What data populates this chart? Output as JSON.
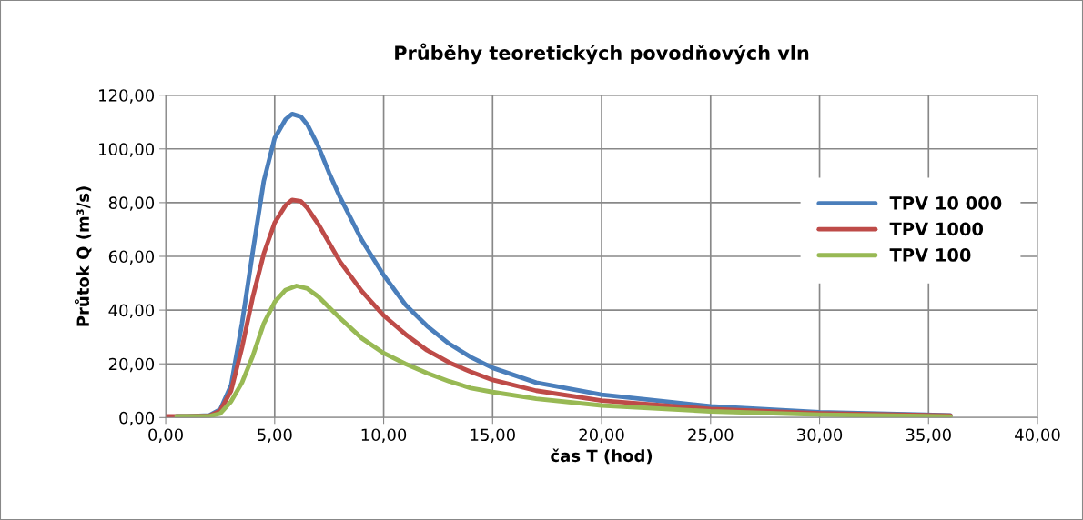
{
  "chart_data": {
    "type": "line",
    "title": "Průběhy teoretických povodňových vln",
    "xlabel": "čas T (hod)",
    "ylabel": "Průtok Q (m³/s)",
    "xlim": [
      0,
      40
    ],
    "ylim": [
      0,
      120
    ],
    "xticks": [
      {
        "value": 0,
        "label": "0,00"
      },
      {
        "value": 5,
        "label": "5,00"
      },
      {
        "value": 10,
        "label": "10,00"
      },
      {
        "value": 15,
        "label": "15,00"
      },
      {
        "value": 20,
        "label": "20,00"
      },
      {
        "value": 25,
        "label": "25,00"
      },
      {
        "value": 30,
        "label": "30,00"
      },
      {
        "value": 35,
        "label": "35,00"
      },
      {
        "value": 40,
        "label": "40,00"
      }
    ],
    "yticks": [
      {
        "value": 0,
        "label": "0,00"
      },
      {
        "value": 20,
        "label": "20,00"
      },
      {
        "value": 40,
        "label": "40,00"
      },
      {
        "value": 60,
        "label": "60,00"
      },
      {
        "value": 80,
        "label": "80,00"
      },
      {
        "value": 100,
        "label": "100,00"
      },
      {
        "value": 120,
        "label": "120,00"
      }
    ],
    "grid": true,
    "legend": "right",
    "marker": "none",
    "line_style": "solid",
    "series": [
      {
        "name": "TPV 10 000",
        "color": "#4a7ebb",
        "x": [
          0.5,
          1,
          2,
          2.5,
          3,
          3.5,
          4,
          4.5,
          5,
          5.5,
          5.8,
          6.2,
          6.5,
          7,
          7.5,
          8,
          9,
          10,
          11,
          12,
          13,
          14,
          15,
          17,
          20,
          25,
          30,
          36
        ],
        "values": [
          0.5,
          0.5,
          0.8,
          3,
          12,
          35,
          62,
          88,
          104,
          111,
          113,
          112,
          109,
          101,
          91,
          82,
          66,
          53,
          42,
          34,
          27.5,
          22.5,
          18.5,
          13,
          8.5,
          4.2,
          2,
          0.8
        ]
      },
      {
        "name": "TPV 1000",
        "color": "#be4b48",
        "x": [
          0,
          1,
          2,
          2.5,
          3,
          3.5,
          4,
          4.5,
          5,
          5.5,
          5.8,
          6.2,
          6.5,
          7,
          7.5,
          8,
          9,
          10,
          11,
          12,
          13,
          14,
          15,
          17,
          20,
          25,
          30,
          36
        ],
        "values": [
          0.5,
          0.5,
          0.6,
          2.5,
          10,
          26,
          45,
          61,
          72.5,
          79,
          81,
          80.5,
          78,
          72,
          65,
          58,
          47,
          38,
          31,
          25,
          20.5,
          17,
          14,
          10,
          6.3,
          3.2,
          1.6,
          0.7
        ]
      },
      {
        "name": "TPV 100",
        "color": "#98b954",
        "x": [
          0.5,
          2,
          2.5,
          3,
          3.5,
          4,
          4.5,
          5,
          5.5,
          6,
          6.5,
          7,
          7.5,
          8,
          9,
          10,
          11,
          12,
          13,
          14,
          15,
          17,
          20,
          25,
          30,
          36
        ],
        "values": [
          0.5,
          0.5,
          1.5,
          6,
          13,
          23,
          35,
          43,
          47.5,
          49,
          48,
          45,
          41,
          37,
          29.5,
          24,
          20,
          16.5,
          13.5,
          11,
          9.5,
          7,
          4.5,
          2.3,
          1.1,
          0.4
        ]
      }
    ]
  }
}
